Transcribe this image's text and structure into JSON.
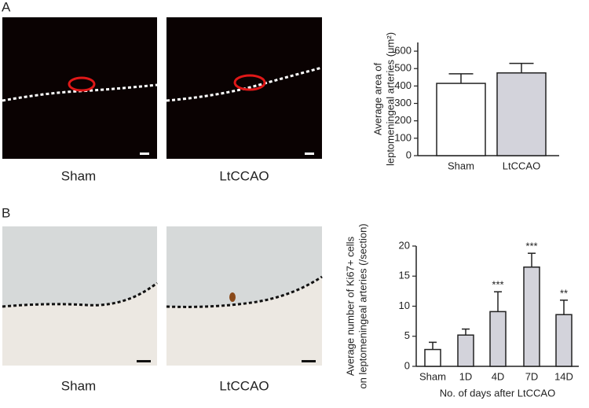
{
  "panels": [
    {
      "label": "A",
      "captions": [
        "Sham",
        "LtCCAO"
      ]
    },
    {
      "label": "B",
      "captions": [
        "Sham",
        "LtCCAO"
      ]
    }
  ],
  "chart_data": [
    {
      "type": "bar",
      "ylabel": [
        "Average area of",
        "leptomeningeal arteries (μm²)"
      ],
      "categories": [
        "Sham",
        "LtCCAO"
      ],
      "values": [
        415,
        475
      ],
      "errors": [
        55,
        55
      ],
      "colors": [
        "#ffffff",
        "#d3d3db"
      ],
      "ylim": [
        0,
        650
      ],
      "yticks": [
        0,
        100,
        200,
        300,
        400,
        500,
        600
      ]
    },
    {
      "type": "bar",
      "ylabel": [
        "Average number of Ki67+ cells",
        "on leptomeningeal arteries (/section)"
      ],
      "xlabel": "No. of days after LtCCAO",
      "categories": [
        "Sham",
        "1D",
        "4D",
        "7D",
        "14D"
      ],
      "values": [
        2.8,
        5.2,
        9.1,
        16.5,
        8.6
      ],
      "errors": [
        1.2,
        1.0,
        3.3,
        2.3,
        2.4
      ],
      "significance": [
        null,
        null,
        "***",
        "***",
        "**"
      ],
      "colors": [
        "#ffffff",
        "#d3d3db",
        "#d3d3db",
        "#d3d3db",
        "#d3d3db"
      ],
      "ylim": [
        0,
        20
      ],
      "yticks": [
        0,
        5,
        10,
        15,
        20
      ]
    }
  ]
}
